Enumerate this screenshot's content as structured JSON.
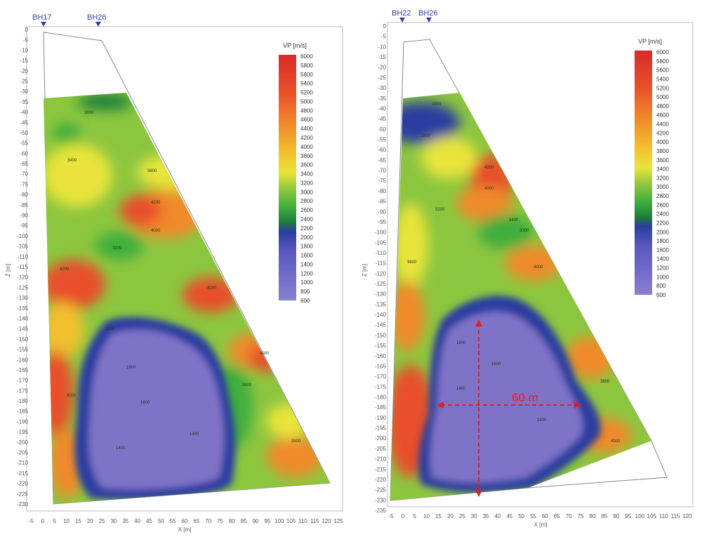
{
  "chart_data": [
    {
      "type": "heatmap",
      "title": "",
      "boreholes": [
        "BH17",
        "BH26"
      ],
      "xlabel": "X [m]",
      "ylabel": "Z [m]",
      "xlim": [
        -5,
        125
      ],
      "ylim": [
        -230,
        0
      ],
      "x_ticks": [
        -5,
        0,
        5,
        10,
        15,
        20,
        25,
        30,
        35,
        40,
        45,
        50,
        55,
        60,
        65,
        70,
        75,
        80,
        85,
        90,
        95,
        100,
        105,
        110,
        115,
        120,
        125
      ],
      "y_ticks": [
        0,
        -5,
        -10,
        -15,
        -20,
        -25,
        -30,
        -35,
        -40,
        -45,
        -50,
        -55,
        -60,
        -65,
        -70,
        -75,
        -80,
        -85,
        -90,
        -95,
        -100,
        -105,
        -110,
        -115,
        -120,
        -125,
        -130,
        -135,
        -140,
        -145,
        -150,
        -155,
        -160,
        -165,
        -170,
        -175,
        -180,
        -185,
        -190,
        -195,
        -200,
        -205,
        -210,
        -215,
        -220,
        -225,
        -230
      ],
      "colorbar_title": "VP [m/s]",
      "colorbar_ticks": [
        6000,
        5800,
        5600,
        5400,
        5200,
        5000,
        4800,
        4600,
        4400,
        4200,
        4000,
        3800,
        3600,
        3400,
        3200,
        3000,
        2800,
        2600,
        2400,
        2200,
        2000,
        1800,
        1600,
        1400,
        1200,
        1000,
        800,
        600
      ],
      "contour_labels": [
        "3800",
        "3400",
        "3600",
        "4200",
        "4000",
        "3200",
        "2800",
        "1800",
        "1600",
        "1400",
        "3000"
      ],
      "annotation": ""
    },
    {
      "type": "heatmap",
      "title": "",
      "boreholes": [
        "BH22",
        "BH26"
      ],
      "xlabel": "X [m]",
      "ylabel": "Z [m]",
      "xlim": [
        -5,
        120
      ],
      "ylim": [
        -235,
        0
      ],
      "x_ticks": [
        -5,
        0,
        5,
        10,
        15,
        20,
        25,
        30,
        35,
        40,
        45,
        50,
        55,
        60,
        65,
        70,
        75,
        80,
        85,
        90,
        95,
        100,
        105,
        110,
        115,
        120
      ],
      "y_ticks": [
        0,
        -5,
        -10,
        -15,
        -20,
        -25,
        -30,
        -35,
        -40,
        -45,
        -50,
        -55,
        -60,
        -65,
        -70,
        -75,
        -80,
        -85,
        -90,
        -95,
        -100,
        -105,
        -110,
        -115,
        -120,
        -125,
        -130,
        -135,
        -140,
        -145,
        -150,
        -155,
        -160,
        -165,
        -170,
        -175,
        -180,
        -185,
        -190,
        -195,
        -200,
        -205,
        -210,
        -215,
        -220,
        -225,
        -230,
        -235
      ],
      "colorbar_title": "VP [m/s]",
      "colorbar_ticks": [
        6000,
        5800,
        5600,
        5400,
        5200,
        5000,
        4800,
        4600,
        4400,
        4200,
        4000,
        3800,
        3600,
        3400,
        3200,
        3000,
        2800,
        2600,
        2400,
        2200,
        2000,
        1800,
        1600,
        1400,
        1200,
        1000,
        800,
        600
      ],
      "contour_labels": [
        "3800",
        "3400",
        "3600",
        "4200",
        "4000",
        "3200",
        "2800",
        "1800",
        "1600",
        "1400",
        "3000"
      ],
      "annotation": "60 m"
    }
  ],
  "colors": {
    "scale": [
      "#7f73c8",
      "#8a7fd0",
      "#5a58c0",
      "#2b3da0",
      "#1f7f3a",
      "#3fae3c",
      "#8cc63f",
      "#e8e43a",
      "#f2c02e",
      "#f08a2a",
      "#e8502a",
      "#d82a2a"
    ],
    "axis": "#666666",
    "marker": "#3340aa",
    "annotation": "#e02020"
  }
}
